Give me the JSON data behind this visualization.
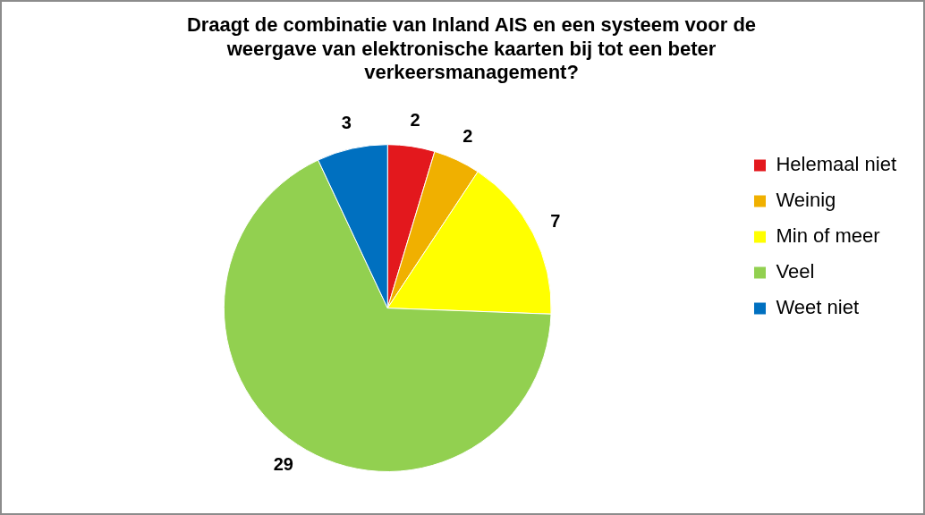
{
  "chart_data": {
    "type": "pie",
    "title": "Draagt de combinatie van Inland AIS en een systeem voor de weergave van elektronische kaarten bij tot een beter verkeersmanagement?",
    "categories": [
      "Helemaal niet",
      "Weinig",
      "Min of meer",
      "Veel",
      "Weet niet"
    ],
    "values": [
      2,
      2,
      7,
      29,
      3
    ],
    "colors": [
      "#e3181d",
      "#f0b000",
      "#ffff00",
      "#92d050",
      "#0070c0"
    ],
    "data_labels": true,
    "legend": "right"
  }
}
